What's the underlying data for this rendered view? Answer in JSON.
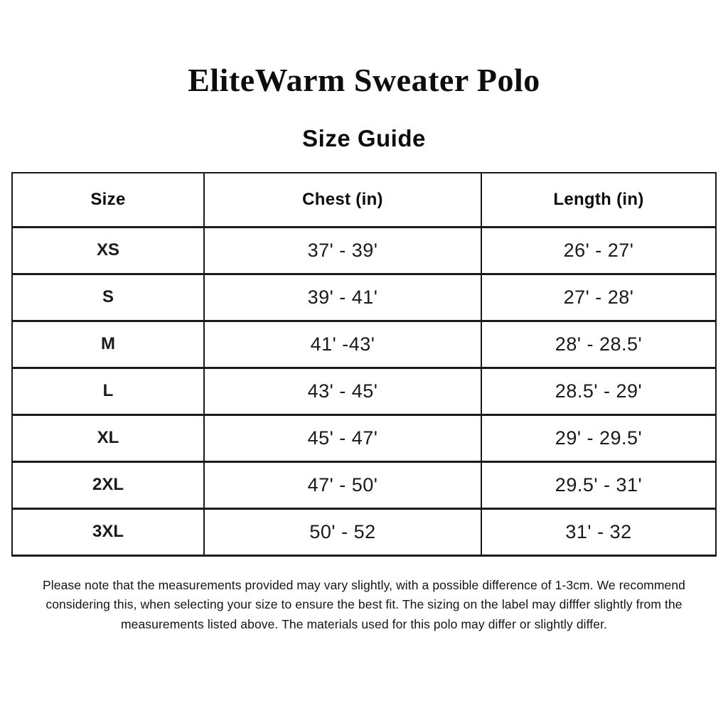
{
  "page": {
    "title": "EliteWarm Sweater Polo",
    "subtitle": "Size Guide"
  },
  "size_table": {
    "headers": [
      "Size",
      "Chest (in)",
      "Length (in)"
    ],
    "rows": [
      {
        "size": "XS",
        "chest": "37' - 39'",
        "length": "26' - 27'"
      },
      {
        "size": "S",
        "chest": "39' - 41'",
        "length": "27' - 28'"
      },
      {
        "size": "M",
        "chest": "41' -43'",
        "length": "28' - 28.5'"
      },
      {
        "size": "L",
        "chest": "43' - 45'",
        "length": "28.5' - 29'"
      },
      {
        "size": "XL",
        "chest": "45' - 47'",
        "length": "29' - 29.5'"
      },
      {
        "size": "2XL",
        "chest": "47' - 50'",
        "length": "29.5' - 31'"
      },
      {
        "size": "3XL",
        "chest": "50' - 52",
        "length": "31' - 32"
      }
    ]
  },
  "note_lines": [
    "Please note that the measurements provided may vary slightly, with a possible difference of 1-3cm. We recommend",
    "considering this, when selecting your size to ensure the best fit. The sizing on the label may difffer slightly from the",
    "measurements listed above. The materials used for this polo may differ or slightly differ."
  ],
  "colors": {
    "background": "#ffffff",
    "text": "#111111",
    "border": "#1a1a1a"
  }
}
